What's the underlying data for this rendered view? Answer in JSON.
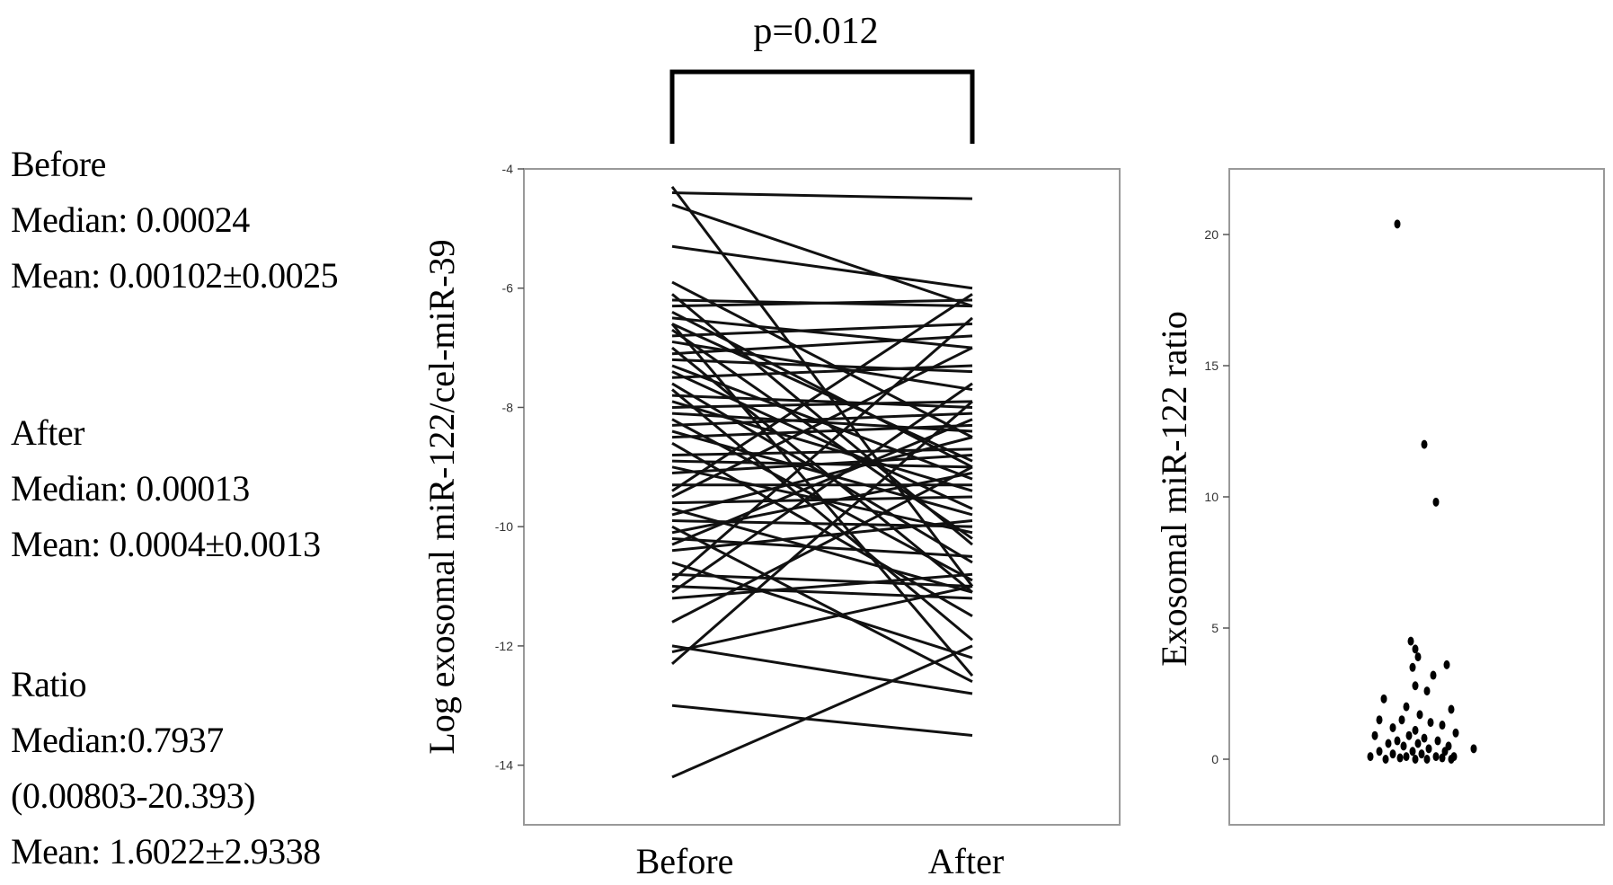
{
  "stats": {
    "before": {
      "label": "Before",
      "median": "Median: 0.00024",
      "mean": "Mean: 0.00102±0.0025"
    },
    "after": {
      "label": "After",
      "median": "Median: 0.00013",
      "mean": "Mean: 0.0004±0.0013"
    },
    "ratio": {
      "label": "Ratio",
      "median": "Median:0.7937",
      "range": "(0.00803-20.393)",
      "mean": "Mean: 1.6022±2.9338"
    }
  },
  "chart_data": [
    {
      "type": "line",
      "subtype": "paired",
      "ylabel": "Log exosomal miR-122/cel-miR-39",
      "xlabel": "",
      "categories": [
        "Before",
        "After"
      ],
      "ylim": [
        -15,
        -4
      ],
      "yticks": [
        -14,
        -12,
        -10,
        -8,
        -6,
        -4
      ],
      "annotation": "p=0.012",
      "grid": false,
      "pairs": [
        [
          -4.3,
          -11.0
        ],
        [
          -4.4,
          -4.5
        ],
        [
          -4.6,
          -6.3
        ],
        [
          -5.3,
          -6.0
        ],
        [
          -5.9,
          -8.5
        ],
        [
          -6.1,
          -10.3
        ],
        [
          -6.2,
          -6.3
        ],
        [
          -6.3,
          -6.2
        ],
        [
          -6.4,
          -9.0
        ],
        [
          -6.5,
          -7.0
        ],
        [
          -6.6,
          -8.9
        ],
        [
          -6.7,
          -10.2
        ],
        [
          -6.8,
          -6.6
        ],
        [
          -6.9,
          -7.7
        ],
        [
          -7.0,
          -11.1
        ],
        [
          -7.1,
          -6.8
        ],
        [
          -7.2,
          -7.4
        ],
        [
          -7.3,
          -9.2
        ],
        [
          -7.4,
          -9.7
        ],
        [
          -7.5,
          -7.3
        ],
        [
          -7.6,
          -10.6
        ],
        [
          -7.8,
          -8.0
        ],
        [
          -7.9,
          -9.4
        ],
        [
          -8.0,
          -7.9
        ],
        [
          -8.1,
          -8.4
        ],
        [
          -8.2,
          -10.9
        ],
        [
          -8.3,
          -8.1
        ],
        [
          -8.4,
          -9.8
        ],
        [
          -8.5,
          -8.3
        ],
        [
          -8.6,
          -11.5
        ],
        [
          -8.8,
          -8.7
        ],
        [
          -8.9,
          -9.0
        ],
        [
          -9.0,
          -10.1
        ],
        [
          -9.1,
          -8.8
        ],
        [
          -9.3,
          -9.3
        ],
        [
          -9.4,
          -6.1
        ],
        [
          -9.5,
          -7.0
        ],
        [
          -9.6,
          -9.5
        ],
        [
          -9.7,
          -11.1
        ],
        [
          -9.8,
          -8.5
        ],
        [
          -9.9,
          -10.0
        ],
        [
          -10.0,
          -12.6
        ],
        [
          -10.1,
          -9.1
        ],
        [
          -10.2,
          -10.5
        ],
        [
          -10.3,
          -8.2
        ],
        [
          -10.4,
          -9.9
        ],
        [
          -10.8,
          -11.0
        ],
        [
          -10.9,
          -6.5
        ],
        [
          -11.0,
          -11.2
        ],
        [
          -11.1,
          -7.6
        ],
        [
          -11.2,
          -10.8
        ],
        [
          -11.6,
          -9.0
        ],
        [
          -12.1,
          -11.0
        ],
        [
          -12.3,
          -7.9
        ],
        [
          -12.0,
          -12.8
        ],
        [
          -13.0,
          -13.5
        ],
        [
          -14.2,
          -12.0
        ],
        [
          -6.6,
          -12.5
        ],
        [
          -7.7,
          -11.9
        ],
        [
          -10.6,
          -12.2
        ]
      ]
    },
    {
      "type": "scatter",
      "ylabel": "Exosomal miR-122 ratio",
      "xlabel": "",
      "ylim": [
        -2.5,
        22.5
      ],
      "yticks": [
        0,
        5,
        10,
        15,
        20
      ],
      "grid": false,
      "points": [
        {
          "x": 0.35,
          "y": 20.4
        },
        {
          "x": 0.65,
          "y": 12.0
        },
        {
          "x": 0.78,
          "y": 9.8
        },
        {
          "x": 0.5,
          "y": 4.5
        },
        {
          "x": 0.55,
          "y": 4.2
        },
        {
          "x": 0.58,
          "y": 3.9
        },
        {
          "x": 0.9,
          "y": 3.6
        },
        {
          "x": 0.52,
          "y": 3.5
        },
        {
          "x": 0.75,
          "y": 3.2
        },
        {
          "x": 0.55,
          "y": 2.8
        },
        {
          "x": 0.68,
          "y": 2.6
        },
        {
          "x": 0.2,
          "y": 2.3
        },
        {
          "x": 0.45,
          "y": 2.0
        },
        {
          "x": 0.95,
          "y": 1.9
        },
        {
          "x": 0.6,
          "y": 1.7
        },
        {
          "x": 0.15,
          "y": 1.5
        },
        {
          "x": 0.4,
          "y": 1.5
        },
        {
          "x": 0.72,
          "y": 1.4
        },
        {
          "x": 0.85,
          "y": 1.3
        },
        {
          "x": 0.3,
          "y": 1.2
        },
        {
          "x": 0.55,
          "y": 1.1
        },
        {
          "x": 1.0,
          "y": 1.0
        },
        {
          "x": 0.1,
          "y": 0.9
        },
        {
          "x": 0.48,
          "y": 0.9
        },
        {
          "x": 0.65,
          "y": 0.8
        },
        {
          "x": 0.35,
          "y": 0.7
        },
        {
          "x": 0.8,
          "y": 0.7
        },
        {
          "x": 0.25,
          "y": 0.6
        },
        {
          "x": 0.58,
          "y": 0.6
        },
        {
          "x": 0.92,
          "y": 0.5
        },
        {
          "x": 0.42,
          "y": 0.5
        },
        {
          "x": 1.2,
          "y": 0.4
        },
        {
          "x": 0.7,
          "y": 0.4
        },
        {
          "x": 0.15,
          "y": 0.3
        },
        {
          "x": 0.52,
          "y": 0.3
        },
        {
          "x": 0.88,
          "y": 0.3
        },
        {
          "x": 0.3,
          "y": 0.2
        },
        {
          "x": 0.62,
          "y": 0.2
        },
        {
          "x": 0.78,
          "y": 0.1
        },
        {
          "x": 0.05,
          "y": 0.1
        },
        {
          "x": 0.45,
          "y": 0.1
        },
        {
          "x": 0.98,
          "y": 0.1
        },
        {
          "x": 0.22,
          "y": 0.0
        },
        {
          "x": 0.68,
          "y": 0.0
        },
        {
          "x": 0.38,
          "y": 0.05
        },
        {
          "x": 0.85,
          "y": 0.05
        },
        {
          "x": 0.55,
          "y": 0.0
        },
        {
          "x": 0.95,
          "y": 0.0
        }
      ]
    }
  ]
}
